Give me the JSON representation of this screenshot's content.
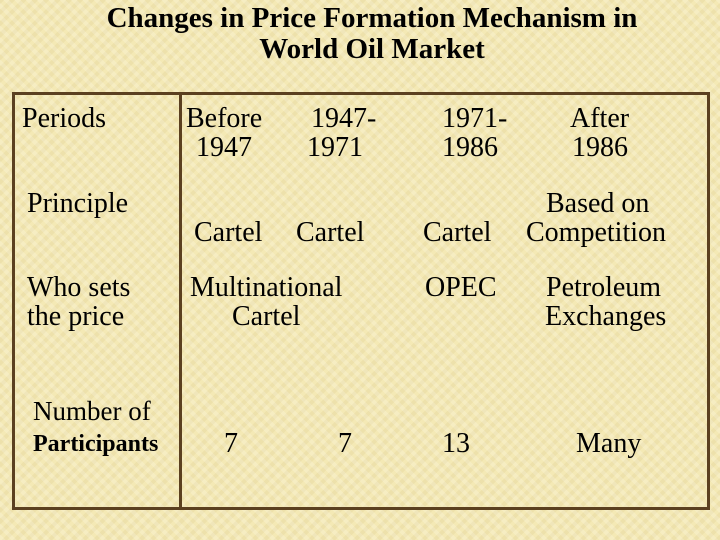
{
  "title": {
    "line1": "Changes in Price Formation Mechanism in",
    "line2": "World Oil Market"
  },
  "rows": {
    "periods": {
      "label": "Periods",
      "col1_line1": "Before",
      "col1_line2": "1947",
      "col2_line1": "1947-",
      "col2_line2": "1971",
      "col3_line1": "1971-",
      "col3_line2": "1986",
      "col4_line1": "After",
      "col4_line2": "1986"
    },
    "principle": {
      "label": "Principle",
      "col1": "Cartel",
      "col2": "Cartel",
      "col3": "Cartel",
      "col4_line1": "Based on",
      "col4_line2": "Competition"
    },
    "who_sets": {
      "label_line1": "Who sets",
      "label_line2": "the price",
      "col12_line1": "Multinational",
      "col12_line2": "Cartel",
      "col3": "OPEC",
      "col4_line1": "Petroleum",
      "col4_line2": "Exchanges"
    },
    "participants": {
      "label_line1": "Number of",
      "label_line2": "Participants",
      "col1": "7",
      "col2": "7",
      "col3": "13",
      "col4": "Many"
    }
  },
  "colors": {
    "background": "#f4e9b5",
    "frame": "#5b4020"
  }
}
